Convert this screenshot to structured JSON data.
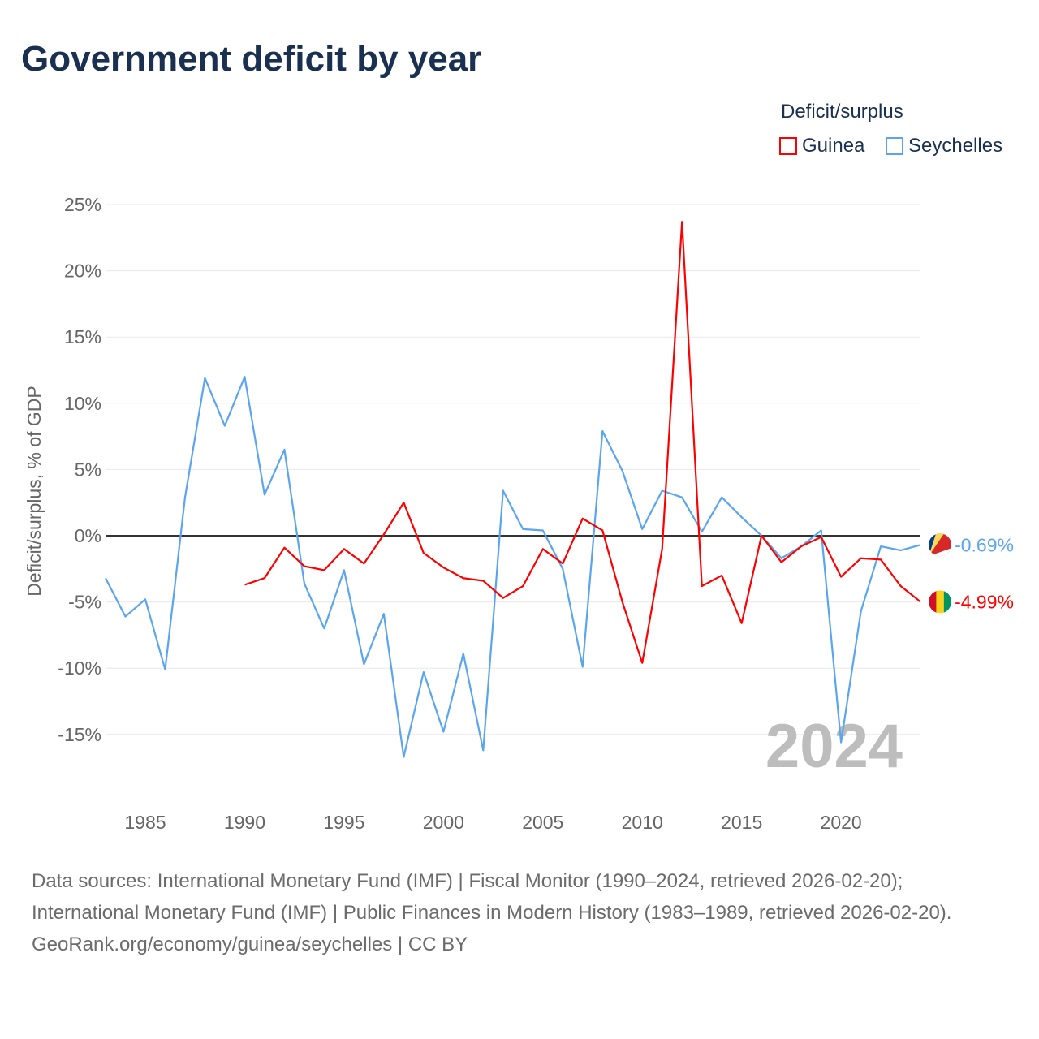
{
  "title": "Government deficit by year",
  "legend": {
    "title": "Deficit/surplus",
    "items": [
      {
        "name": "Guinea",
        "color": "#ff0000"
      },
      {
        "name": "Seychelles",
        "color": "#5aa5ee"
      }
    ]
  },
  "chart_data": {
    "type": "line",
    "title": "Government deficit by year",
    "ylabel": "Deficit/surplus, % of GDP",
    "xlabel": "",
    "xlim": [
      1983,
      2024
    ],
    "ylim": [
      -18.5,
      25
    ],
    "yticks": [
      25,
      20,
      15,
      10,
      5,
      0,
      -5,
      -10,
      -15
    ],
    "ytick_labels": [
      "25%",
      "20%",
      "15%",
      "10%",
      "5%",
      "0%",
      "-5%",
      "-10%",
      "-15%"
    ],
    "xticks": [
      1985,
      1990,
      1995,
      2000,
      2005,
      2010,
      2015,
      2020
    ],
    "xtick_labels": [
      "1985",
      "1990",
      "1995",
      "2000",
      "2005",
      "2010",
      "2015",
      "2020"
    ],
    "grid": true,
    "year_watermark": "2024",
    "series": [
      {
        "name": "Seychelles",
        "color": "#5aa5ee",
        "end_label": "-0.69%",
        "x_start": 1983,
        "values": [
          -3.2,
          -6.1,
          -4.8,
          -10.1,
          2.9,
          11.9,
          8.3,
          12.0,
          3.1,
          6.5,
          -3.6,
          -7.0,
          -2.6,
          -9.7,
          -5.9,
          -16.7,
          -10.3,
          -14.8,
          -8.9,
          -16.2,
          3.4,
          0.5,
          0.4,
          -2.5,
          -9.9,
          7.9,
          4.9,
          0.5,
          3.4,
          2.9,
          0.3,
          2.9,
          1.4,
          0.0,
          -1.7,
          -0.8,
          0.4,
          -15.6,
          -5.7,
          -0.8,
          -1.1,
          -0.69
        ]
      },
      {
        "name": "Guinea",
        "color": "#ff0000",
        "end_label": "-4.99%",
        "x_start": 1990,
        "values": [
          -3.7,
          -3.2,
          -0.9,
          -2.3,
          -2.6,
          -1.0,
          -2.1,
          0.1,
          2.5,
          -1.3,
          -2.4,
          -3.2,
          -3.4,
          -4.7,
          -3.8,
          -1.0,
          -2.1,
          1.3,
          0.4,
          -5.0,
          -9.6,
          -1.0,
          23.7,
          -3.8,
          -3.0,
          -6.6,
          0.0,
          -2.0,
          -0.8,
          -0.1,
          -3.1,
          -1.7,
          -1.8,
          -3.8,
          -4.99
        ]
      }
    ]
  },
  "sources": {
    "line1": "Data sources: International Monetary Fund (IMF) | Fiscal Monitor (1990–2024, retrieved 2026-02-20); International Monetary Fund (IMF) | Public Finances in Modern History (1983–1989, retrieved 2026-02-20).",
    "line2": "GeoRank.org/economy/guinea/seychelles | CC BY"
  }
}
